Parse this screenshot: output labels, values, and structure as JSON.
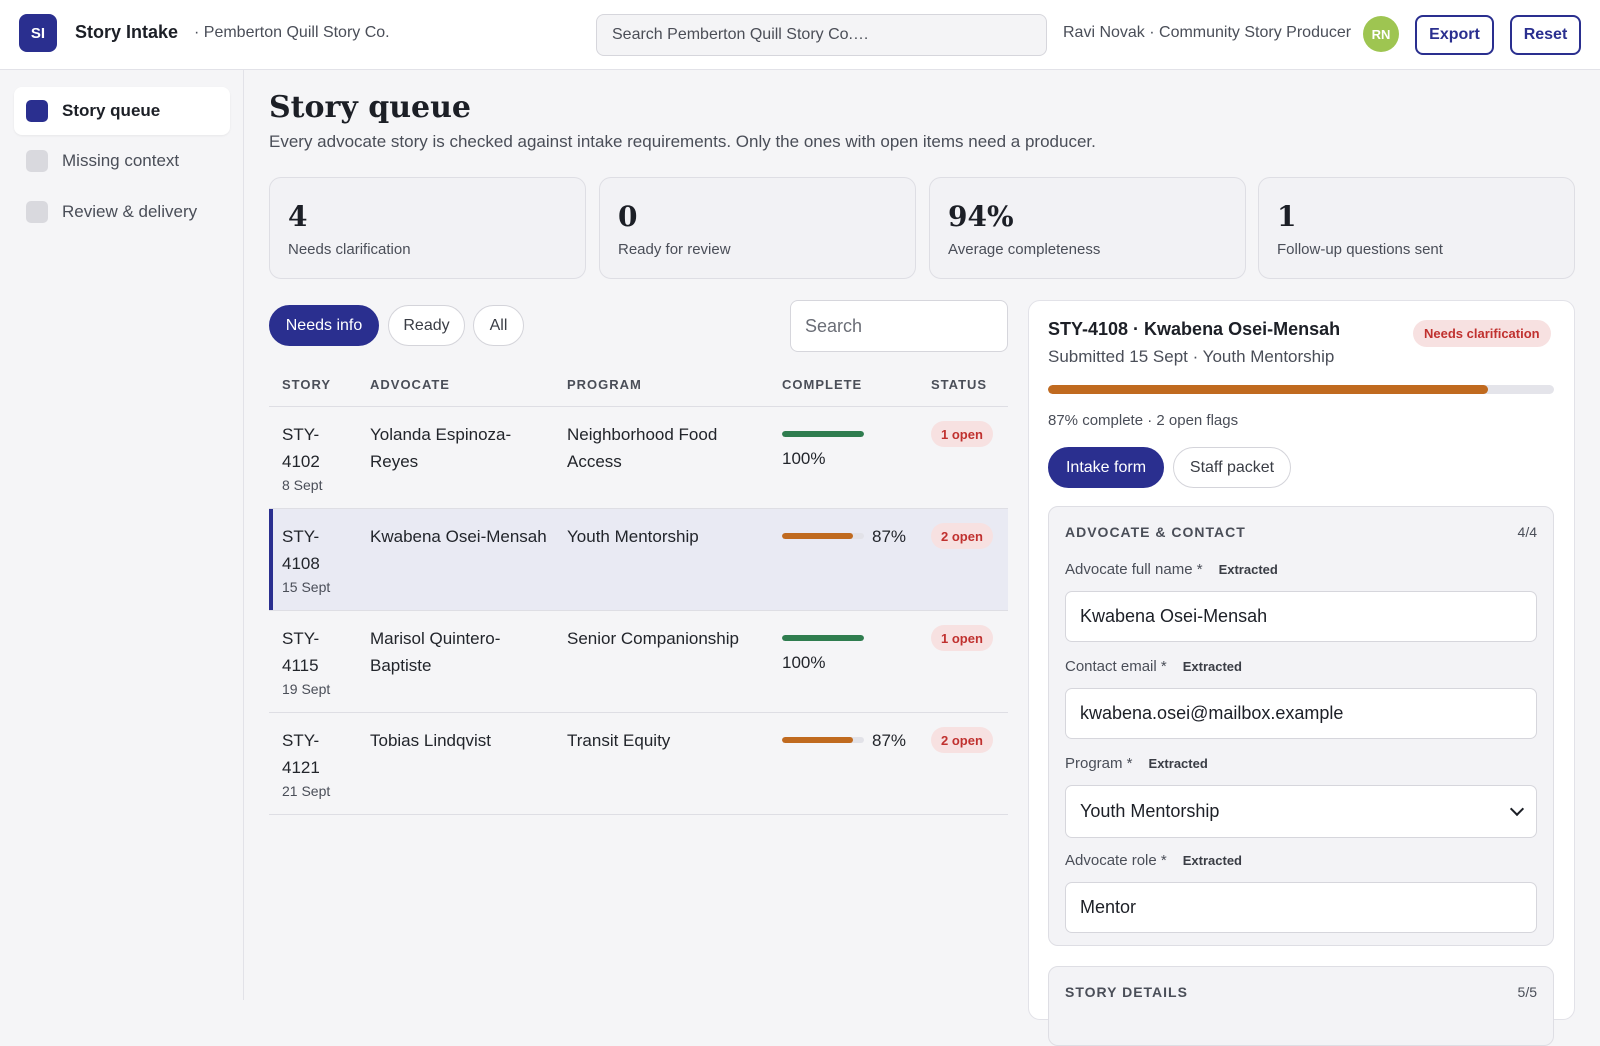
{
  "header": {
    "logo_text": "SI",
    "app_title": "Story Intake",
    "org": "· Pemberton Quill Story Co.",
    "search_placeholder": "Search Pemberton Quill Story Co.…",
    "user": "Ravi Novak · Community Story Producer",
    "avatar_initials": "RN",
    "export_label": "Export",
    "reset_label": "Reset"
  },
  "sidebar": {
    "items": [
      {
        "label": "Story queue",
        "active": true
      },
      {
        "label": "Missing context",
        "active": false
      },
      {
        "label": "Review & delivery",
        "active": false
      }
    ]
  },
  "main": {
    "title": "Story queue",
    "subtitle": "Every advocate story is checked against intake requirements. Only the ones with open items need a producer.",
    "stats": [
      {
        "value": "4",
        "label": "Needs clarification"
      },
      {
        "value": "0",
        "label": "Ready for review"
      },
      {
        "value": "94%",
        "label": "Average completeness"
      },
      {
        "value": "1",
        "label": "Follow-up questions sent"
      }
    ],
    "filters": [
      {
        "label": "Needs info",
        "active": true
      },
      {
        "label": "Ready",
        "active": false
      },
      {
        "label": "All",
        "active": false
      }
    ],
    "search_placeholder": "Search"
  },
  "table": {
    "headers": [
      "STORY",
      "ADVOCATE",
      "PROGRAM",
      "COMPLETE",
      "STATUS"
    ],
    "rows": [
      {
        "story": "STY-4102",
        "date": "8 Sept",
        "advocate": "Yolanda Espinoza-Reyes",
        "program": "Neighborhood Food Access",
        "complete": "100%",
        "complete_value": 100,
        "status": "1 open",
        "selected": false
      },
      {
        "story": "STY-4108",
        "date": "15 Sept",
        "advocate": "Kwabena Osei-Mensah",
        "program": "Youth Mentorship",
        "complete": "87%",
        "complete_value": 87,
        "status": "2 open",
        "selected": true
      },
      {
        "story": "STY-4115",
        "date": "19 Sept",
        "advocate": "Marisol Quintero-Baptiste",
        "program": "Senior Companionship",
        "complete": "100%",
        "complete_value": 100,
        "status": "1 open",
        "selected": false
      },
      {
        "story": "STY-4121",
        "date": "21 Sept",
        "advocate": "Tobias Lindqvist",
        "program": "Transit Equity",
        "complete": "87%",
        "complete_value": 87,
        "status": "2 open",
        "selected": false
      }
    ]
  },
  "detail": {
    "title": "STY-4108 · Kwabena Osei-Mensah",
    "badge": "Needs clarification",
    "subtitle": "Submitted 15 Sept · Youth Mentorship",
    "progress_value": 87,
    "progress_text": "87% complete · 2 open flags",
    "tabs": [
      {
        "label": "Intake form",
        "active": true
      },
      {
        "label": "Staff packet",
        "active": false
      }
    ],
    "section1": {
      "title": "ADVOCATE & CONTACT",
      "count": "4/4",
      "fields": [
        {
          "label": "Advocate full name *",
          "tag": "Extracted",
          "value": "Kwabena Osei-Mensah"
        },
        {
          "label": "Contact email *",
          "tag": "Extracted",
          "value": "kwabena.osei@mailbox.example"
        },
        {
          "label": "Program *",
          "tag": "Extracted",
          "value": "Youth Mentorship"
        },
        {
          "label": "Advocate role *",
          "tag": "Extracted",
          "value": "Mentor"
        }
      ]
    },
    "section2": {
      "title": "STORY DETAILS",
      "count": "5/5"
    }
  },
  "colors": {
    "accent": "#2a2f8f",
    "complete_full": "#2f7d4f",
    "complete_partial": "#c06a1f",
    "status_badge_bg": "#f7e1e1",
    "status_badge_text": "#c0312f",
    "avatar": "#9ec551"
  },
  "icons": {
    "select_arrow": "chevron-down-icon",
    "sidebar_item": "square-icon"
  }
}
